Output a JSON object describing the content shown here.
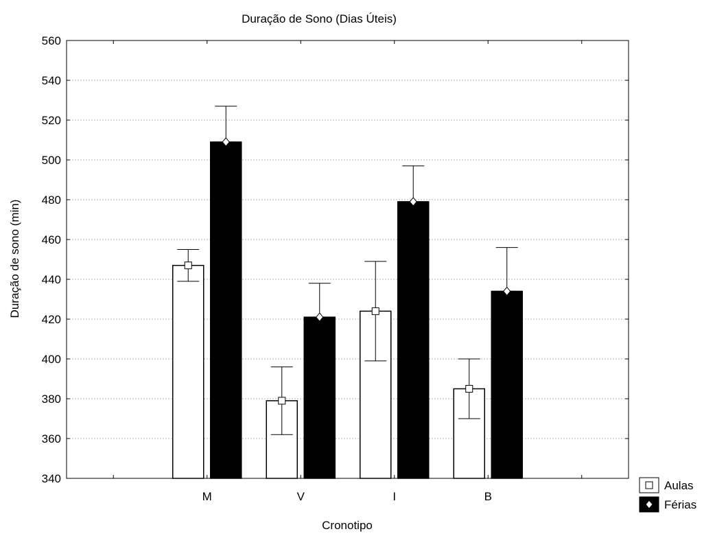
{
  "chart_data": {
    "type": "bar",
    "title": "Duração de Sono (Dias Úteis)",
    "xlabel": "Cronotipo",
    "ylabel": "Duração de sono (min)",
    "categories": [
      "M",
      "V",
      "I",
      "B"
    ],
    "ylim": [
      340,
      560
    ],
    "yticks": [
      340,
      360,
      380,
      400,
      420,
      440,
      460,
      480,
      500,
      520,
      540,
      560
    ],
    "grid": true,
    "legend_position": "bottom-right",
    "series": [
      {
        "name": "Aulas",
        "fill": "#ffffff",
        "marker": "square",
        "values": [
          447,
          379,
          424,
          385
        ],
        "err_low": [
          439,
          362,
          399,
          370
        ],
        "err_high": [
          455,
          396,
          449,
          400
        ]
      },
      {
        "name": "Férias",
        "fill": "#000000",
        "marker": "diamond",
        "values": [
          509,
          421,
          479,
          434
        ],
        "err_low": [
          509,
          421,
          479,
          434
        ],
        "err_high": [
          527,
          438,
          497,
          456
        ]
      }
    ]
  }
}
